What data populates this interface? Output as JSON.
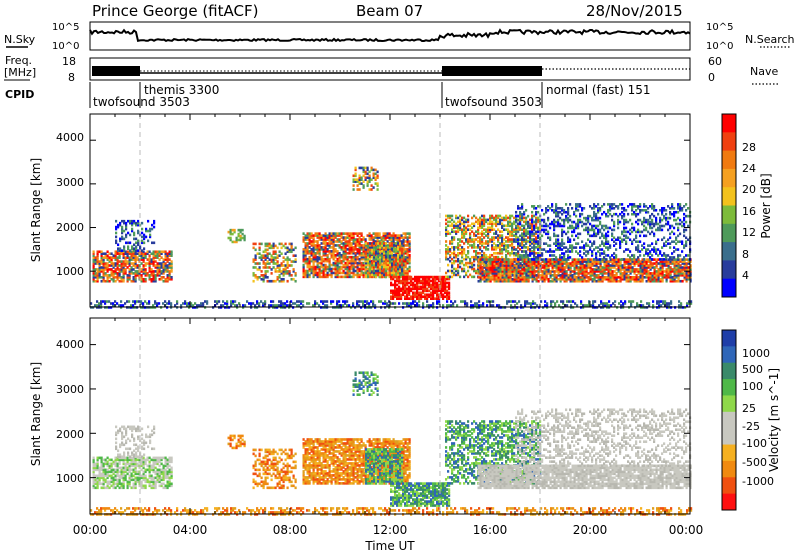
{
  "header": {
    "station": "Prince George (fitACF)",
    "beam": "Beam 07",
    "date": "28/Nov/2015"
  },
  "noise_panel": {
    "left_label": "N.Sky",
    "left_ticks": [
      "10^5",
      "10^0"
    ],
    "right_label": "N.Search",
    "right_ticks": [
      "10^5",
      "10^0"
    ]
  },
  "freq_panel": {
    "left_label_1": "Freq.",
    "left_label_2": "[MHz]",
    "left_ticks": [
      "18",
      "8"
    ],
    "right_label": "Nave",
    "right_ticks": [
      "60",
      "0"
    ]
  },
  "cpid": {
    "label": "CPID",
    "modes": [
      {
        "name": "twofsound 3503",
        "start_hour": 0
      },
      {
        "name": "themis 3300",
        "start_hour": 2
      },
      {
        "name": "twofsound 3503",
        "start_hour": 14
      },
      {
        "name": "normal (fast) 151",
        "start_hour": 18
      }
    ]
  },
  "chart_data": [
    {
      "type": "heatmap",
      "panel": "power",
      "ylabel": "Slant Range [km]",
      "ylim": [
        180,
        4600
      ],
      "yticks": [
        "1000",
        "2000",
        "3000",
        "4000"
      ],
      "xlim_hours": [
        0,
        24
      ],
      "colorbar_label": "Power [dB]",
      "colorbar_ticks": [
        "28",
        "24",
        "20",
        "16",
        "12",
        "8",
        "4"
      ],
      "colorbar_colors": [
        "#0000ff",
        "#283c9c",
        "#3a6e8c",
        "#4e9a5a",
        "#7dbb3a",
        "#f3c21d",
        "#f5a020",
        "#f07a10",
        "#f04010",
        "#ff0000"
      ]
    },
    {
      "type": "heatmap",
      "panel": "velocity",
      "ylabel": "Slant Range [km]",
      "ylim": [
        180,
        4600
      ],
      "yticks": [
        "1000",
        "2000",
        "3000",
        "4000"
      ],
      "xlim_hours": [
        0,
        24
      ],
      "xticks": [
        "00:00",
        "04:00",
        "08:00",
        "12:00",
        "16:00",
        "20:00",
        "00:00"
      ],
      "xlabel": "Time UT",
      "colorbar_label": "Velocity [m s^-1]",
      "colorbar_ticks": [
        "1000",
        "500",
        "100",
        "25",
        "-25",
        "-100",
        "-500",
        "-1000"
      ],
      "colorbar_colors": [
        "#1f3ea8",
        "#2f66b8",
        "#3a8a6a",
        "#4fb848",
        "#8fd84a",
        "#c8c8c0",
        "#c8c8c0",
        "#f5b020",
        "#f08a10",
        "#f05010",
        "#ff1010"
      ]
    }
  ]
}
